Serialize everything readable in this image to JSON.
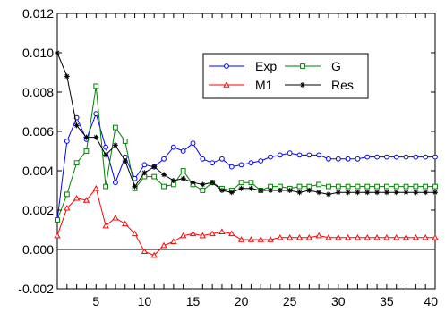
{
  "chart_data": {
    "type": "line",
    "title": "",
    "xlabel": "",
    "ylabel": "",
    "xlim": [
      1,
      40
    ],
    "ylim": [
      -0.002,
      0.012
    ],
    "x_ticks": [
      5,
      10,
      15,
      20,
      25,
      30,
      35,
      40
    ],
    "y_ticks": [
      "-0.002",
      "0.000",
      "0.002",
      "0.004",
      "0.006",
      "0.008",
      "0.010",
      "0.012"
    ],
    "x": [
      1,
      2,
      3,
      4,
      5,
      6,
      7,
      8,
      9,
      10,
      11,
      12,
      13,
      14,
      15,
      16,
      17,
      18,
      19,
      20,
      21,
      22,
      23,
      24,
      25,
      26,
      27,
      28,
      29,
      30,
      31,
      32,
      33,
      34,
      35,
      36,
      37,
      38,
      39,
      40
    ],
    "legend_position": "upper-right-inside",
    "grid": false,
    "series": [
      {
        "name": "Exp",
        "color": "#0000ff",
        "marker": "circle",
        "values": [
          0.0015,
          0.0055,
          0.0067,
          0.0056,
          0.0069,
          0.0052,
          0.0034,
          0.0047,
          0.0036,
          0.0043,
          0.0042,
          0.0046,
          0.0052,
          0.005,
          0.0054,
          0.0046,
          0.0044,
          0.0046,
          0.0042,
          0.0043,
          0.0044,
          0.0045,
          0.0047,
          0.0048,
          0.0049,
          0.0048,
          0.0048,
          0.0048,
          0.0046,
          0.0046,
          0.0046,
          0.0046,
          0.0047,
          0.0047,
          0.0047,
          0.0047,
          0.0047,
          0.0047,
          0.0047,
          0.0047
        ]
      },
      {
        "name": "G",
        "color": "#008000",
        "marker": "square",
        "values": [
          0.0015,
          0.0028,
          0.0044,
          0.005,
          0.0083,
          0.0032,
          0.0062,
          0.0055,
          0.0031,
          0.0037,
          0.0037,
          0.0032,
          0.0033,
          0.004,
          0.0033,
          0.003,
          0.0034,
          0.0031,
          0.003,
          0.0034,
          0.0034,
          0.003,
          0.0032,
          0.0032,
          0.0031,
          0.0032,
          0.0032,
          0.0033,
          0.0032,
          0.0032,
          0.0032,
          0.0032,
          0.0032,
          0.0032,
          0.0032,
          0.0032,
          0.0032,
          0.0032,
          0.0032,
          0.0032
        ]
      },
      {
        "name": "M1",
        "color": "#ff0000",
        "marker": "triangle",
        "values": [
          0.0007,
          0.0021,
          0.0026,
          0.0025,
          0.0031,
          0.0012,
          0.0016,
          0.0013,
          0.0008,
          -0.0001,
          -0.0003,
          0.0002,
          0.0004,
          0.0007,
          0.0008,
          0.0007,
          0.0008,
          0.0009,
          0.0008,
          0.0005,
          0.0005,
          0.0005,
          0.0005,
          0.0006,
          0.0006,
          0.0006,
          0.0006,
          0.0007,
          0.0006,
          0.0006,
          0.0006,
          0.0006,
          0.0006,
          0.0006,
          0.0006,
          0.0006,
          0.0006,
          0.0006,
          0.0006,
          0.0006
        ]
      },
      {
        "name": "Res",
        "color": "#000000",
        "marker": "star",
        "values": [
          0.01,
          0.0088,
          0.0063,
          0.0057,
          0.0057,
          0.0048,
          0.0053,
          0.0045,
          0.0032,
          0.0039,
          0.0042,
          0.0038,
          0.0035,
          0.0036,
          0.0034,
          0.0033,
          0.0034,
          0.003,
          0.0029,
          0.0031,
          0.0031,
          0.003,
          0.003,
          0.003,
          0.003,
          0.0029,
          0.003,
          0.0029,
          0.0028,
          0.0029,
          0.0029,
          0.0029,
          0.0029,
          0.0029,
          0.0029,
          0.0029,
          0.0029,
          0.0029,
          0.0029,
          0.0029
        ]
      }
    ]
  }
}
